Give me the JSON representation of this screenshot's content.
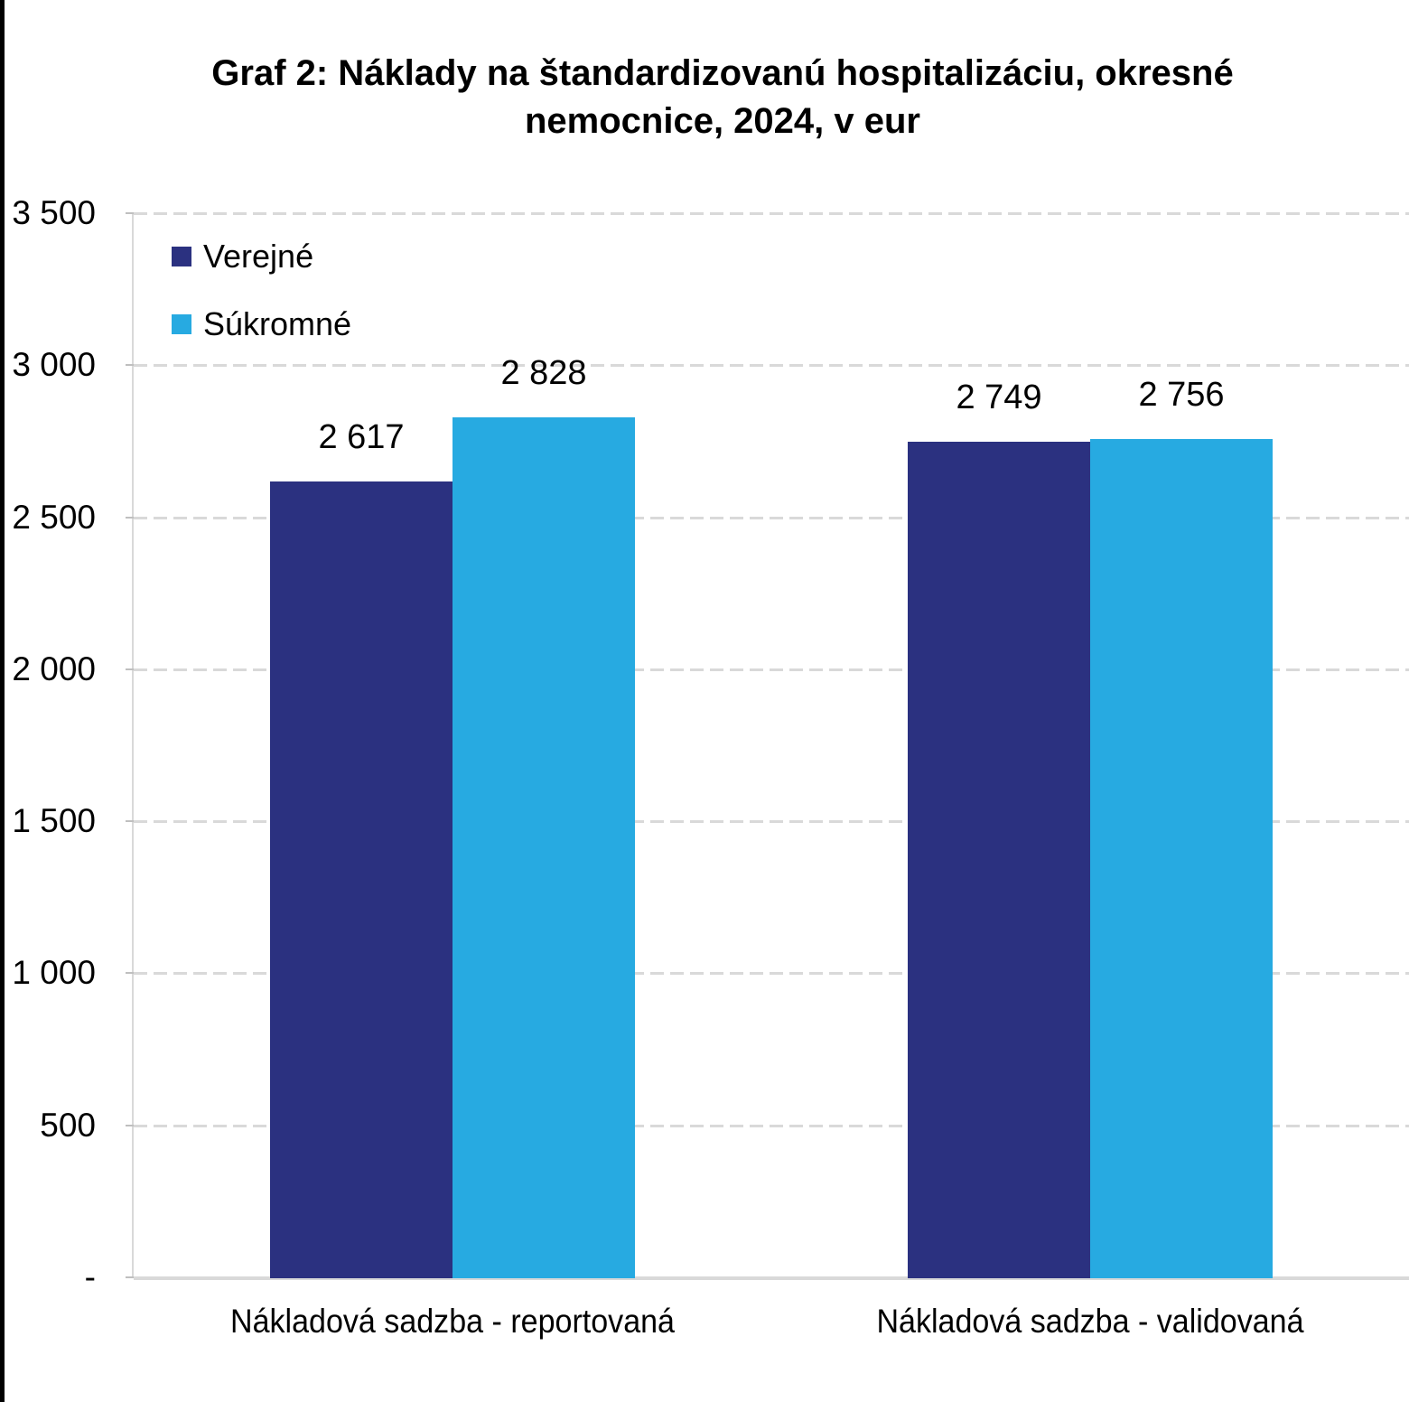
{
  "page": {
    "background": "#FFFFFF",
    "left_border_color": "#000000"
  },
  "chart_data": {
    "type": "bar",
    "title": "Graf 2: Náklady na štandardizovanú hospitalizáciu, okresné nemocnice, 2024, v eur",
    "title_lines": [
      "Graf 2: Náklady na štandardizovanú hospitalizáciu, okresné",
      "nemocnice, 2024, v eur"
    ],
    "categories": [
      "Nákladová sadzba - reportovaná",
      "Nákladová sadzba - validovaná"
    ],
    "series": [
      {
        "name": "Verejné",
        "color": "#2B3180",
        "values": [
          2617,
          2749
        ],
        "value_labels": [
          "2 617",
          "2 749"
        ]
      },
      {
        "name": "Súkromné",
        "color": "#27AAE1",
        "values": [
          2828,
          2756
        ],
        "value_labels": [
          "2 828",
          "2 756"
        ]
      }
    ],
    "xlabel": "",
    "ylabel": "",
    "ylim": [
      0,
      3500
    ],
    "yticks": [
      {
        "value": 3500,
        "label": "3 500"
      },
      {
        "value": 3000,
        "label": "3 000"
      },
      {
        "value": 2500,
        "label": "2 500"
      },
      {
        "value": 2000,
        "label": "2 000"
      },
      {
        "value": 1500,
        "label": "1 500"
      },
      {
        "value": 1000,
        "label": "1 000"
      },
      {
        "value": 500,
        "label": "500"
      },
      {
        "value": 0,
        "label": "-"
      }
    ],
    "grid": "horizontal-dashed",
    "gridline_color": "#D9D9D9",
    "axis_line_color": "#D9D9D9",
    "legend_position": "top-left-inside"
  }
}
